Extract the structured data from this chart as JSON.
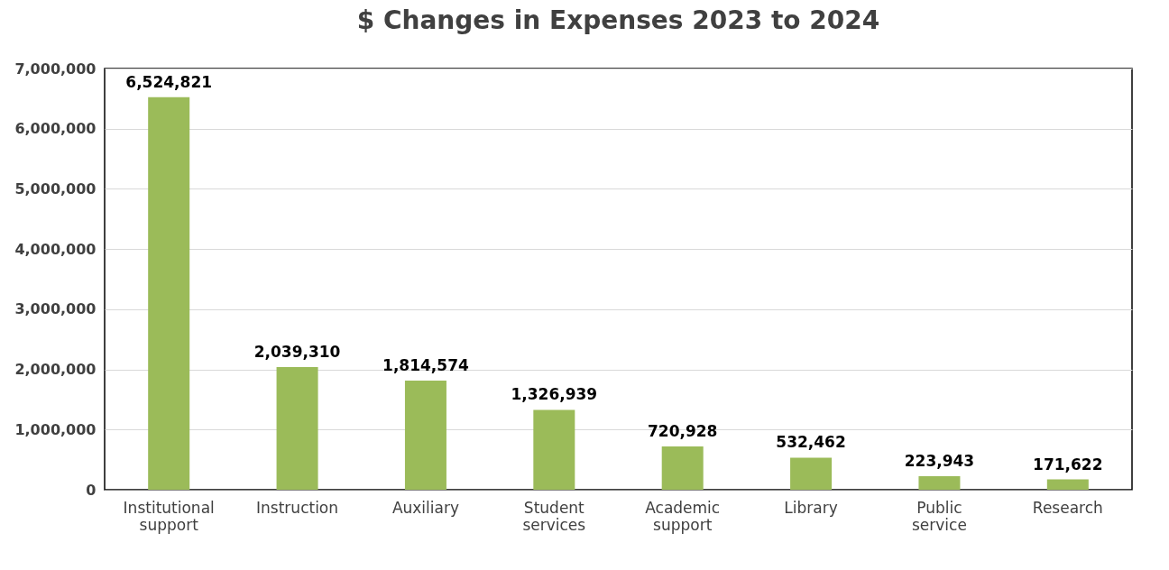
{
  "chart_data": {
    "type": "bar",
    "title": "$ Changes in Expenses 2023 to 2024",
    "categories": [
      "Institutional support",
      "Instruction",
      "Auxiliary",
      "Student services",
      "Academic support",
      "Library",
      "Public service",
      "Research"
    ],
    "values": [
      6524821,
      2039310,
      1814574,
      1326939,
      720928,
      532462,
      223943,
      171622
    ],
    "color": "#9bbb59",
    "ylim": [
      0,
      7000000
    ],
    "yticks": [
      {
        "value": 0,
        "label": "0"
      },
      {
        "value": 1000000,
        "label": "1,000,000"
      },
      {
        "value": 2000000,
        "label": "2,000,000"
      },
      {
        "value": 3000000,
        "label": "3,000,000"
      },
      {
        "value": 4000000,
        "label": "4,000,000"
      },
      {
        "value": 5000000,
        "label": "5,000,000"
      },
      {
        "value": 6000000,
        "label": "6,000,000"
      },
      {
        "value": 7000000,
        "label": "7,000,000"
      }
    ],
    "value_labels": [
      "6,524,821",
      "2,039,310",
      "1,814,574",
      "1,326,939",
      "720,928",
      "532,462",
      "223,943",
      "171,622"
    ],
    "grid": "y"
  }
}
